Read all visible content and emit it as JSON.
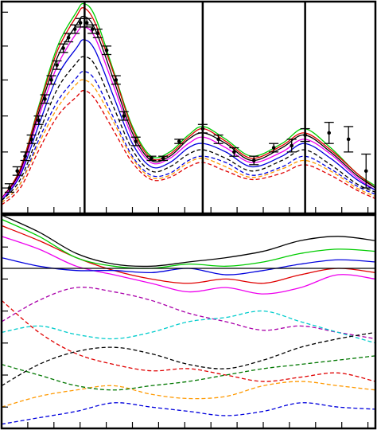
{
  "chart_data": [
    {
      "type": "line",
      "xlim": [
        0,
        100
      ],
      "ylim": [
        0,
        100
      ],
      "xticks": [
        7,
        14,
        21,
        28,
        35,
        42,
        49,
        56,
        63,
        70,
        77,
        84,
        91,
        98
      ],
      "yticks": [
        12,
        29,
        46,
        63,
        79,
        95
      ],
      "vlines": [
        22.2,
        53.8,
        81.2
      ],
      "x": [
        0,
        5,
        10,
        15,
        20,
        22,
        25,
        30,
        35,
        40,
        45,
        50,
        54,
        60,
        67,
        75,
        81,
        88,
        95,
        100
      ],
      "series": [
        {
          "color": "#00cc00",
          "dashed": false,
          "values": [
            7,
            21,
            51,
            79,
            95,
            99,
            93,
            67,
            41,
            27,
            29,
            37,
            41,
            35,
            27,
            33,
            40,
            31,
            19,
            13
          ]
        },
        {
          "color": "#e00000",
          "dashed": false,
          "values": [
            7,
            21,
            50,
            77,
            93,
            97,
            90,
            66,
            40,
            26,
            28,
            36,
            40,
            34,
            26,
            32,
            38,
            30,
            19,
            12
          ]
        },
        {
          "color": "#000000",
          "dashed": false,
          "values": [
            7,
            20,
            48,
            74,
            89,
            93,
            87,
            63,
            38,
            25,
            27,
            35,
            38,
            33,
            25,
            31,
            37,
            29,
            18,
            12
          ]
        },
        {
          "color": "#ee00ee",
          "dashed": false,
          "values": [
            7,
            19,
            46,
            70,
            85,
            88,
            83,
            60,
            36,
            24,
            26,
            33,
            36,
            31,
            24,
            29,
            35,
            28,
            17,
            11
          ]
        },
        {
          "color": "#0000dd",
          "dashed": false,
          "values": [
            6,
            18,
            42,
            65,
            78,
            82,
            77,
            55,
            33,
            22,
            24,
            31,
            33,
            29,
            22,
            27,
            33,
            26,
            16,
            11
          ]
        },
        {
          "color": "#000000",
          "dashed": true,
          "values": [
            6,
            16,
            38,
            59,
            71,
            74,
            70,
            50,
            30,
            20,
            22,
            28,
            30,
            26,
            20,
            25,
            30,
            23,
            14,
            10
          ]
        },
        {
          "color": "#0000dd",
          "dashed": true,
          "values": [
            5,
            14,
            35,
            53,
            64,
            67,
            63,
            45,
            27,
            18,
            19,
            25,
            27,
            24,
            18,
            22,
            27,
            21,
            13,
            9
          ]
        },
        {
          "color": "#ff9900",
          "dashed": true,
          "values": [
            5,
            14,
            33,
            50,
            61,
            63,
            59,
            43,
            26,
            17,
            18,
            24,
            26,
            22,
            17,
            21,
            25,
            20,
            12,
            8
          ]
        },
        {
          "color": "#e00000",
          "dashed": true,
          "values": [
            4,
            12,
            30,
            46,
            55,
            58,
            54,
            39,
            24,
            16,
            17,
            22,
            24,
            20,
            16,
            19,
            23,
            18,
            11,
            7
          ]
        }
      ],
      "points": {
        "x": [
          2.1,
          4.2,
          6.3,
          8.0,
          9.9,
          11.6,
          13.3,
          14.8,
          16.5,
          17.9,
          19.6,
          21.1,
          22.8,
          24.3,
          25.7,
          28.1,
          30.6,
          32.7,
          35.9,
          40.1,
          43.2,
          47.5,
          53.8,
          58.0,
          62.2,
          67.5,
          72.8,
          77.6,
          81.2,
          87.6,
          92.8,
          97.5
        ],
        "values": [
          12,
          20,
          27,
          35,
          44,
          54,
          63,
          70,
          78,
          83,
          87,
          90,
          90,
          87,
          85,
          77,
          63,
          46,
          34,
          26,
          26,
          34,
          40,
          35,
          29,
          25,
          31,
          32,
          37,
          38,
          35,
          20
        ],
        "errors": [
          2,
          2,
          2,
          2,
          2,
          2,
          2,
          2,
          2,
          2,
          2,
          2,
          2,
          2,
          2,
          2,
          2,
          2,
          2,
          1,
          1,
          1,
          2,
          2,
          2,
          2,
          2,
          3,
          3,
          5,
          6,
          8
        ]
      }
    },
    {
      "type": "line",
      "xlim": [
        0,
        100
      ],
      "ylim": [
        0,
        100
      ],
      "xticks": [
        7,
        14,
        21,
        28,
        35,
        42,
        49,
        56,
        63,
        70,
        77,
        84,
        91,
        98
      ],
      "yticks": [
        10,
        25,
        40,
        55,
        70,
        85
      ],
      "x": [
        0,
        10,
        20,
        30,
        40,
        50,
        60,
        70,
        80,
        90,
        100
      ],
      "series": [
        {
          "color": "#000000",
          "dashed": false,
          "values": [
            100,
            92,
            82,
            77,
            76,
            78,
            80,
            83,
            88,
            90,
            88
          ]
        },
        {
          "color": "#e00000",
          "dashed": false,
          "values": [
            95,
            88,
            80,
            74,
            70,
            68,
            70,
            68,
            72,
            75,
            73
          ]
        },
        {
          "color": "#00cc00",
          "dashed": false,
          "values": [
            98,
            90,
            80,
            76,
            75,
            77,
            76,
            78,
            82,
            84,
            83
          ]
        },
        {
          "color": "#ee00ee",
          "dashed": false,
          "values": [
            90,
            84,
            76,
            72,
            68,
            64,
            66,
            63,
            66,
            72,
            70
          ]
        },
        {
          "color": "#0000dd",
          "dashed": false,
          "values": [
            80,
            76,
            74,
            74,
            73,
            75,
            72,
            74,
            77,
            79,
            78
          ]
        },
        {
          "color": "#000000",
          "dashed": false,
          "values": [
            75,
            75,
            75,
            75,
            75,
            75,
            75,
            75,
            75,
            75,
            75
          ]
        },
        {
          "color": "#aa00aa",
          "dashed": true,
          "values": [
            50,
            60,
            66,
            64,
            60,
            54,
            50,
            46,
            48,
            45,
            42
          ]
        },
        {
          "color": "#00cccc",
          "dashed": true,
          "values": [
            45,
            48,
            44,
            42,
            45,
            50,
            52,
            55,
            50,
            45,
            40
          ]
        },
        {
          "color": "#e00000",
          "dashed": true,
          "values": [
            60,
            45,
            35,
            30,
            27,
            28,
            25,
            22,
            24,
            26,
            22
          ]
        },
        {
          "color": "#000000",
          "dashed": true,
          "values": [
            20,
            30,
            36,
            38,
            35,
            30,
            28,
            32,
            38,
            42,
            45
          ]
        },
        {
          "color": "#ff9900",
          "dashed": true,
          "values": [
            10,
            15,
            18,
            20,
            16,
            14,
            15,
            20,
            22,
            20,
            18
          ]
        },
        {
          "color": "#0000dd",
          "dashed": true,
          "values": [
            2,
            5,
            8,
            12,
            10,
            8,
            6,
            8,
            12,
            10,
            9
          ]
        },
        {
          "color": "#007700",
          "dashed": true,
          "values": [
            30,
            25,
            20,
            18,
            20,
            22,
            25,
            28,
            30,
            32,
            34
          ]
        }
      ]
    }
  ]
}
